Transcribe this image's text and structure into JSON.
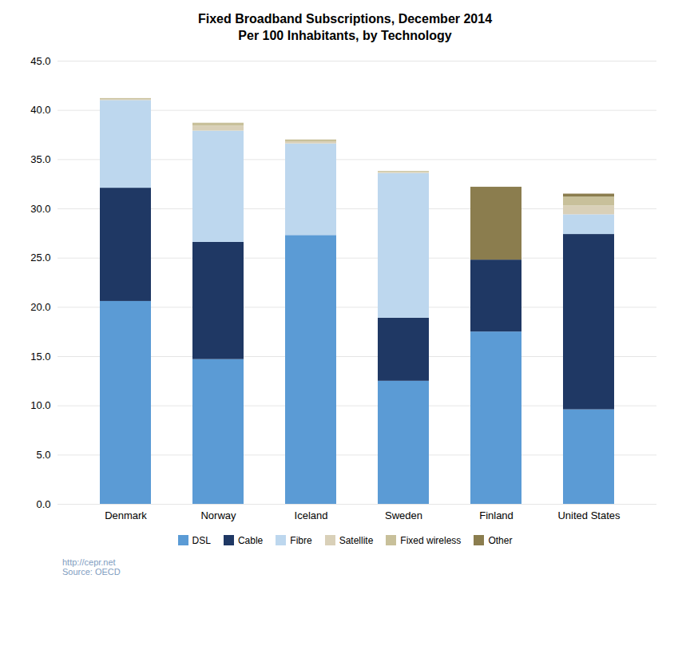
{
  "chart_data": {
    "type": "bar",
    "stacked": true,
    "title": "Fixed Broadband Subscriptions,  December 2014\nPer 100 Inhabitants,  by Technology",
    "categories": [
      "Denmark",
      "Norway",
      "Iceland",
      "Sweden",
      "Finland",
      "United States"
    ],
    "series": [
      {
        "name": "DSL",
        "color": "#5b9bd5",
        "values": [
          20.6,
          14.7,
          27.3,
          12.5,
          17.5,
          9.6
        ]
      },
      {
        "name": "Cable",
        "color": "#1f3864",
        "values": [
          11.5,
          11.9,
          0.0,
          6.4,
          7.3,
          17.8
        ]
      },
      {
        "name": "Fibre",
        "color": "#bdd7ee",
        "values": [
          8.9,
          11.3,
          9.3,
          14.7,
          0.0,
          2.0
        ]
      },
      {
        "name": "Satellite",
        "color": "#d9d0b8",
        "values": [
          0.1,
          0.5,
          0.2,
          0.1,
          0.0,
          0.9
        ]
      },
      {
        "name": "Fixed wireless",
        "color": "#c8c09a",
        "values": [
          0.1,
          0.3,
          0.2,
          0.1,
          0.0,
          0.9
        ]
      },
      {
        "name": "Other",
        "color": "#8b7d4e",
        "values": [
          0.0,
          0.0,
          0.0,
          0.0,
          7.4,
          0.3
        ]
      }
    ],
    "ylim": [
      0,
      45
    ],
    "yticks": [
      {
        "value": 0,
        "label": "0.0"
      },
      {
        "value": 5,
        "label": "5.0"
      },
      {
        "value": 10,
        "label": "10.0"
      },
      {
        "value": 15,
        "label": "15.0"
      },
      {
        "value": 20,
        "label": "20.0"
      },
      {
        "value": 25,
        "label": "25.0"
      },
      {
        "value": 30,
        "label": "30.0"
      },
      {
        "value": 35,
        "label": "35.0"
      },
      {
        "value": 40,
        "label": "40.0"
      },
      {
        "value": 45,
        "label": "45.0"
      }
    ],
    "grid": true,
    "legend": "bottom",
    "annotations": [
      "http://cepr.net\nSource: OECD"
    ]
  }
}
